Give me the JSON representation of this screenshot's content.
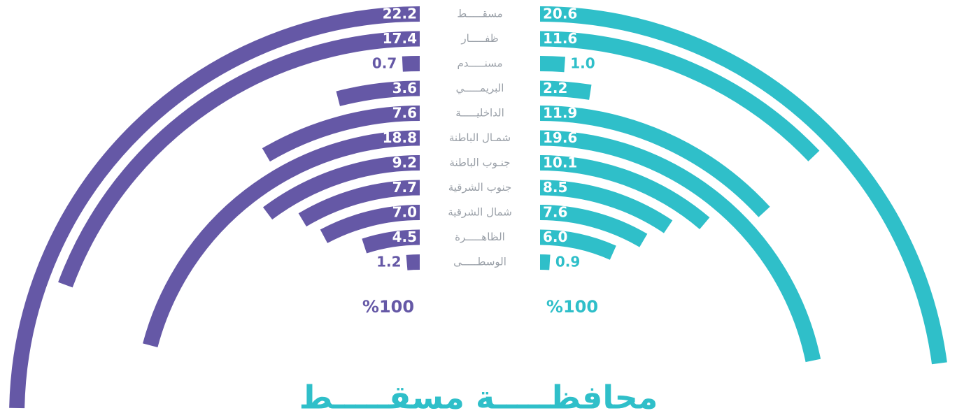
{
  "chart_data": {
    "type": "radial_bar",
    "title": "محافظـــــة مسقـــــط",
    "categories": [
      "مسقـــــط",
      "ظفـــــار",
      "مسنـــــدم",
      "البريمـــــي",
      "الداخليـــــة",
      "شمـال الباطنة",
      "جنـوب الباطنة",
      "جنوب الشرقية",
      "شمال الشرقية",
      "الظاهـــــرة",
      "الوسطـــــى"
    ],
    "series": [
      {
        "color": "#6558a6",
        "side": "left",
        "scale_label": "%100",
        "values": [
          22.2,
          17.4,
          0.7,
          3.6,
          7.6,
          18.8,
          9.2,
          7.7,
          7.0,
          4.5,
          1.2
        ],
        "value_labels": [
          "22.2",
          "17.4",
          "0.7",
          "3.6",
          "7.6",
          "18.8",
          "9.2",
          "7.7",
          "7.0",
          "4.5",
          "1.2"
        ]
      },
      {
        "color": "#2fbfc9",
        "side": "right",
        "scale_label": "%100",
        "values": [
          20.6,
          11.6,
          1.0,
          2.2,
          11.9,
          19.6,
          10.1,
          8.5,
          7.6,
          6.0,
          0.9
        ],
        "value_labels": [
          "20.6",
          "11.6",
          "1.0",
          "2.2",
          "11.9",
          "19.6",
          "10.1",
          "8.5",
          "7.6",
          "6.0",
          "0.9"
        ]
      }
    ]
  }
}
